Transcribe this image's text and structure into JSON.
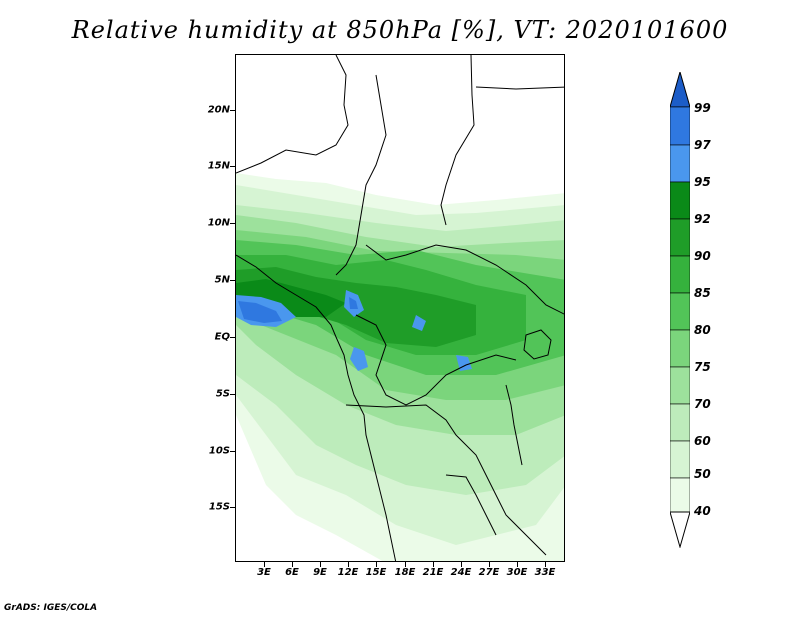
{
  "title": "Relative humidity at 850hPa [%], VT: 2020101600",
  "credit": "GrADS: IGES/COLA",
  "map": {
    "lat_labels": [
      "20N",
      "15N",
      "10N",
      "5N",
      "EQ",
      "5S",
      "10S",
      "15S"
    ],
    "lon_labels": [
      "3E",
      "6E",
      "9E",
      "12E",
      "15E",
      "18E",
      "21E",
      "24E",
      "27E",
      "30E",
      "33E"
    ]
  },
  "legend": {
    "levels": [
      "99",
      "97",
      "95",
      "92",
      "90",
      "85",
      "80",
      "75",
      "70",
      "60",
      "50",
      "40"
    ],
    "colors": {
      "above_99": "#1c5dc8",
      "97_99": "#2f78e0",
      "95_97": "#4a97ee",
      "92_95": "#0a8a18",
      "90_92": "#1f9d28",
      "85_90": "#35b23d",
      "80_85": "#52c458",
      "75_80": "#7bd57c",
      "70_75": "#9de19c",
      "60_70": "#bdecbb",
      "50_60": "#d6f4d3",
      "40_50": "#ebfbe8",
      "below_40": "#ffffff"
    }
  }
}
